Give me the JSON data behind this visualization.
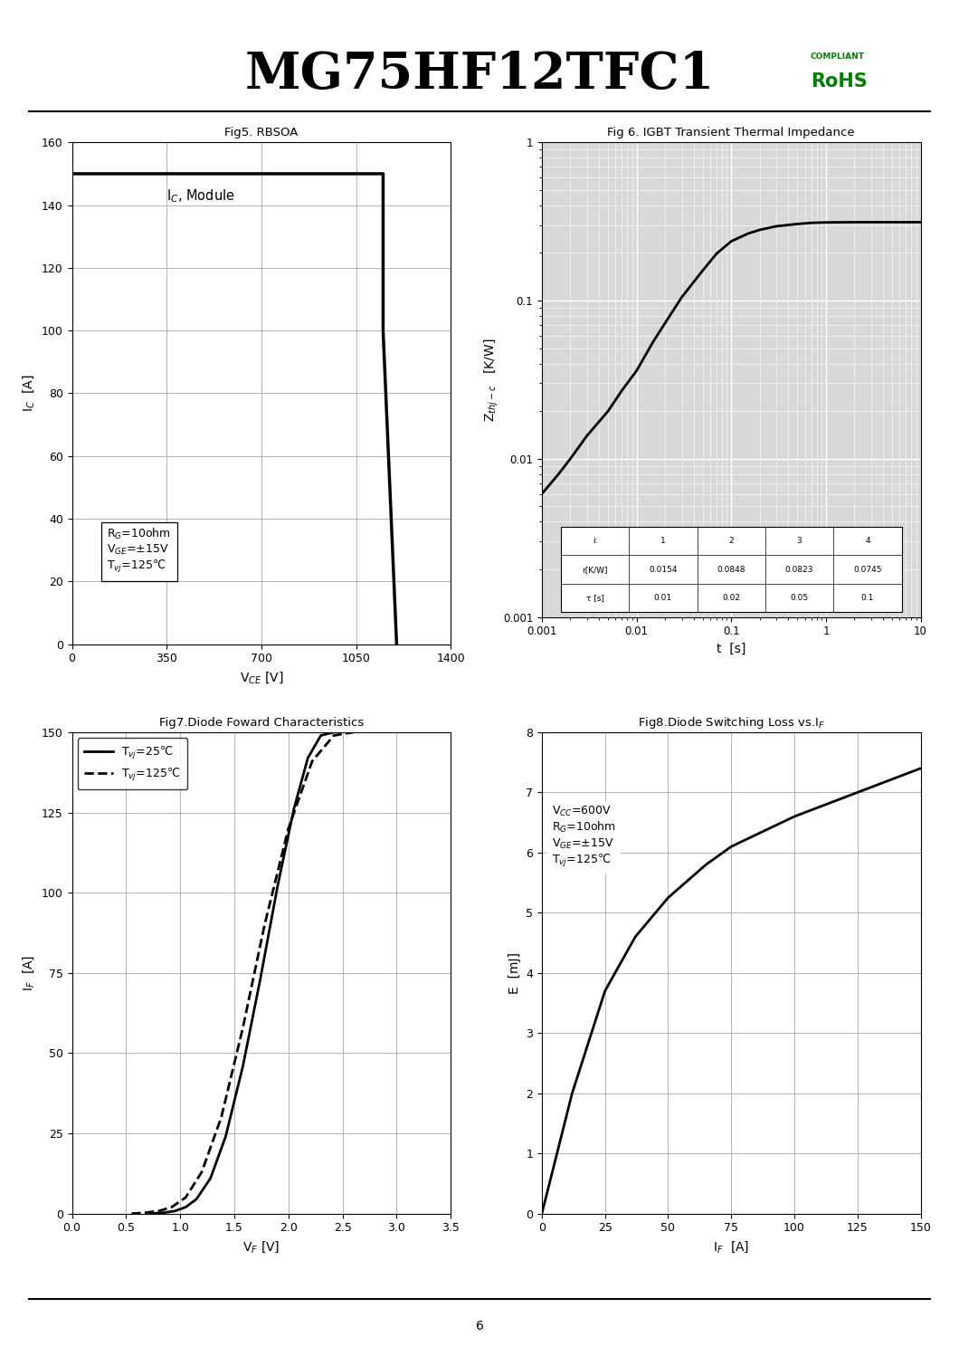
{
  "title": "MG75HF12TFC1",
  "title_fontsize": 40,
  "title_fontweight": "bold",
  "rohs_text": "RoHS",
  "compliant_text": "COMPLIANT",
  "page_number": "6",
  "fig5": {
    "title": "Fig5. RBSOA",
    "xlabel": "V_{CE} [V]",
    "ylabel": "I_{C}  [A]",
    "xlim": [
      0,
      1400
    ],
    "ylim": [
      0,
      160
    ],
    "xticks": [
      0,
      350,
      700,
      1050,
      1400
    ],
    "yticks": [
      0,
      20,
      40,
      60,
      80,
      100,
      120,
      140,
      160
    ],
    "annotation": "R$_G$=10ohm\nV$_{GE}$=±15V\nT$_{vj}$=125℃",
    "label_text": "I$_C$, Module"
  },
  "fig6": {
    "title": "Fig 6. IGBT Transient Thermal Impedance",
    "xlabel": "t  [s]",
    "ylabel": "Z$_{thj-c}$   [K/W]",
    "curve_x": [
      0.001,
      0.0015,
      0.002,
      0.003,
      0.005,
      0.007,
      0.01,
      0.015,
      0.02,
      0.03,
      0.05,
      0.07,
      0.1,
      0.15,
      0.2,
      0.3,
      0.5,
      0.7,
      1.0,
      2.0,
      5.0,
      10.0
    ],
    "curve_y": [
      0.006,
      0.008,
      0.01,
      0.014,
      0.02,
      0.027,
      0.036,
      0.055,
      0.072,
      0.105,
      0.155,
      0.198,
      0.237,
      0.265,
      0.28,
      0.295,
      0.305,
      0.31,
      0.312,
      0.313,
      0.313,
      0.313
    ],
    "table_headers": [
      "i:",
      "1",
      "2",
      "3",
      "4"
    ],
    "table_r": [
      "r[K/W]",
      "0.0154",
      "0.0848",
      "0.0823",
      "0.0745"
    ],
    "table_t": [
      "τ [s]",
      "0.01",
      "0.02",
      "0.05",
      "0.1"
    ]
  },
  "fig7": {
    "title": "Fig7.Diode Foward Characteristics",
    "xlabel": "V$_F$ [V]",
    "ylabel": "I$_F$  [A]",
    "xlim": [
      0,
      3.5
    ],
    "ylim": [
      0,
      150
    ],
    "xticks": [
      0,
      0.5,
      1.0,
      1.5,
      2.0,
      2.5,
      3.0,
      3.5
    ],
    "yticks": [
      0,
      25,
      50,
      75,
      100,
      125,
      150
    ],
    "curve25_x": [
      0.72,
      0.85,
      0.95,
      1.05,
      1.15,
      1.28,
      1.42,
      1.58,
      1.74,
      1.9,
      2.05,
      2.18,
      2.3,
      2.42
    ],
    "curve25_y": [
      0,
      0.3,
      0.8,
      2,
      4.5,
      11,
      24,
      46,
      73,
      102,
      126,
      142,
      149,
      150
    ],
    "curve125_x": [
      0.55,
      0.68,
      0.8,
      0.92,
      1.05,
      1.2,
      1.38,
      1.58,
      1.78,
      2.0,
      2.22,
      2.42,
      2.6
    ],
    "curve125_y": [
      0,
      0.3,
      0.8,
      2,
      5,
      13,
      30,
      58,
      90,
      120,
      141,
      149,
      150
    ],
    "legend_25": "T$_{vj}$=25℃",
    "legend_125": "T$_{vj}$=125℃"
  },
  "fig8": {
    "title": "Fig8.Diode Switching Loss vs.I$_F$",
    "xlabel": "I$_F$  [A]",
    "ylabel": "E  [mJ]",
    "xlim": [
      0,
      150
    ],
    "ylim": [
      0,
      8
    ],
    "xticks": [
      0,
      25,
      50,
      75,
      100,
      125,
      150
    ],
    "yticks": [
      0,
      1,
      2,
      3,
      4,
      5,
      6,
      7,
      8
    ],
    "annotation": "V$_{CC}$=600V\nR$_G$=10ohm\nV$_{GE}$=±15V\nT$_{vj}$=125℃",
    "curve_x": [
      0,
      12,
      25,
      37,
      50,
      65,
      75,
      100,
      125,
      150
    ],
    "curve_y": [
      0,
      2.0,
      3.7,
      4.6,
      5.25,
      5.8,
      6.1,
      6.6,
      7.0,
      7.4
    ]
  }
}
